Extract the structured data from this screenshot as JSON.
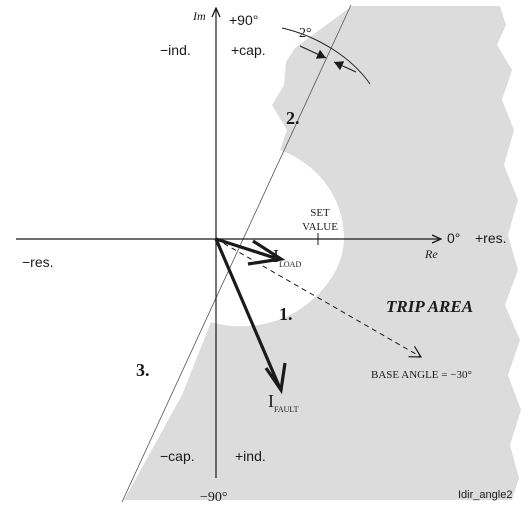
{
  "axes": {
    "im_label": "Im",
    "re_label": "Re",
    "plus_90": "+90°",
    "minus_90": "−90°",
    "zero_deg": "0°",
    "plus_res": "+res.",
    "minus_res": "−res."
  },
  "quadrants": {
    "upper_left": "−ind.",
    "upper_right": "+cap.",
    "lower_left": "−cap.",
    "lower_right": "+ind."
  },
  "angle_margin": "2°",
  "set_value": {
    "line1": "SET",
    "line2": "VALUE"
  },
  "load_current": {
    "main": "I",
    "sub": "LOAD"
  },
  "fault_current": {
    "main": "I",
    "sub": "FAULT"
  },
  "trip_area": "TRIP AREA",
  "base_angle": "BASE ANGLE = −30°",
  "markers": {
    "one": "1.",
    "two": "2.",
    "three": "3."
  },
  "figure_id": "Idir_angle2",
  "colors": {
    "trip_area": "#dcdcdc",
    "ink": "#1a1a1a"
  }
}
